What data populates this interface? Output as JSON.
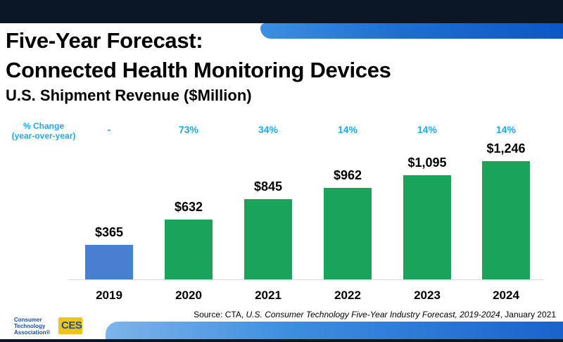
{
  "title_line1": "Five-Year Forecast:",
  "title_line2": "Connected Health Monitoring Devices",
  "subtitle": "U.S. Shipment Revenue ($Million)",
  "pct_change_label_line1": "% Change",
  "pct_change_label_line2": "(year-over-year)",
  "pct_changes": [
    "-",
    "73%",
    "34%",
    "14%",
    "14%",
    "14%"
  ],
  "source": {
    "prefix": "Source: CTA, ",
    "italic": "U.S. Consumer Technology Five-Year Industry Forecast, 2019-2024",
    "suffix": ", January 2021"
  },
  "logo": {
    "lines": [
      "Consumer",
      "Technology",
      "Association®"
    ],
    "badge": "CES"
  },
  "colors": {
    "highlight_bar": "#4a7fd0",
    "bar": "#1aa35a",
    "pct_text": "#1ea8e6"
  },
  "chart_data": {
    "type": "bar",
    "title": "Five-Year Forecast: Connected Health Monitoring Devices",
    "subtitle": "U.S. Shipment Revenue ($Million)",
    "categories": [
      "2019",
      "2020",
      "2021",
      "2022",
      "2023",
      "2024"
    ],
    "values": [
      365,
      632,
      845,
      962,
      1095,
      1246
    ],
    "value_labels": [
      "$365",
      "$632",
      "$845",
      "$962",
      "$1,095",
      "$1,246"
    ],
    "xlabel": "",
    "ylabel": "",
    "ylim": [
      0,
      1300
    ],
    "grid": false,
    "legend": "none"
  }
}
